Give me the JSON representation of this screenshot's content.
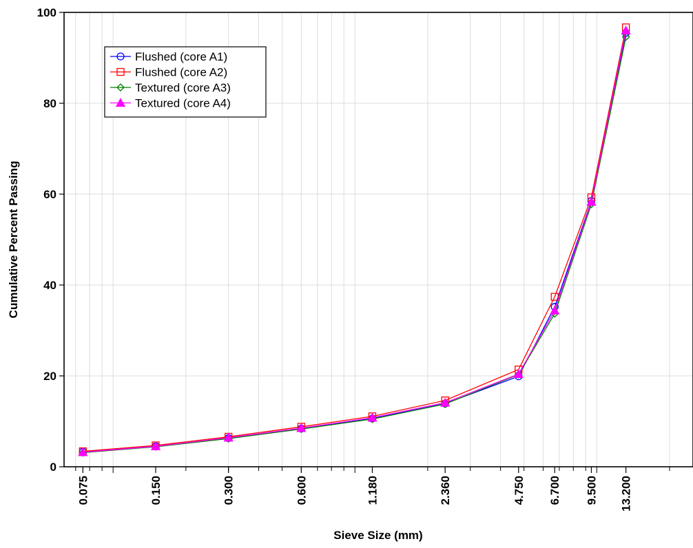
{
  "chart_data": {
    "type": "line",
    "xlabel": "Sieve Size (mm)",
    "ylabel": "Cumulative Percent Passing",
    "x_scale": "log",
    "x": [
      0.075,
      0.15,
      0.3,
      0.6,
      1.18,
      2.36,
      4.75,
      6.7,
      9.5,
      13.2
    ],
    "x_tick_labels": [
      "0.075",
      "0.150",
      "0.300",
      "0.600",
      "1.180",
      "2.360",
      "4.750",
      "6.700",
      "9.500",
      "13.200"
    ],
    "xlim": [
      0.0627,
      25.0
    ],
    "ylim": [
      0,
      100
    ],
    "y_ticks": [
      0,
      20,
      40,
      60,
      80,
      100
    ],
    "grid": true,
    "legend_position": "top-left",
    "series": [
      {
        "name": "Flushed (core A1)",
        "color": "#0000ff",
        "marker": "circle",
        "values": [
          3.3,
          4.5,
          6.3,
          8.4,
          10.6,
          13.9,
          19.9,
          35.2,
          58.5,
          95.5
        ]
      },
      {
        "name": "Flushed (core A2)",
        "color": "#ff0000",
        "marker": "square",
        "values": [
          3.4,
          4.7,
          6.6,
          8.8,
          11.1,
          14.6,
          21.4,
          37.4,
          59.3,
          96.7
        ]
      },
      {
        "name": "Textured (core A3)",
        "color": "#008000",
        "marker": "diamond",
        "values": [
          3.1,
          4.4,
          6.2,
          8.3,
          10.5,
          13.8,
          20.3,
          33.7,
          57.8,
          94.6
        ]
      },
      {
        "name": "Textured (core A4)",
        "color": "#ff00ff",
        "marker": "triangle",
        "values": [
          3.2,
          4.5,
          6.4,
          8.5,
          10.8,
          14.1,
          20.4,
          34.4,
          58.3,
          96.0
        ]
      }
    ]
  }
}
